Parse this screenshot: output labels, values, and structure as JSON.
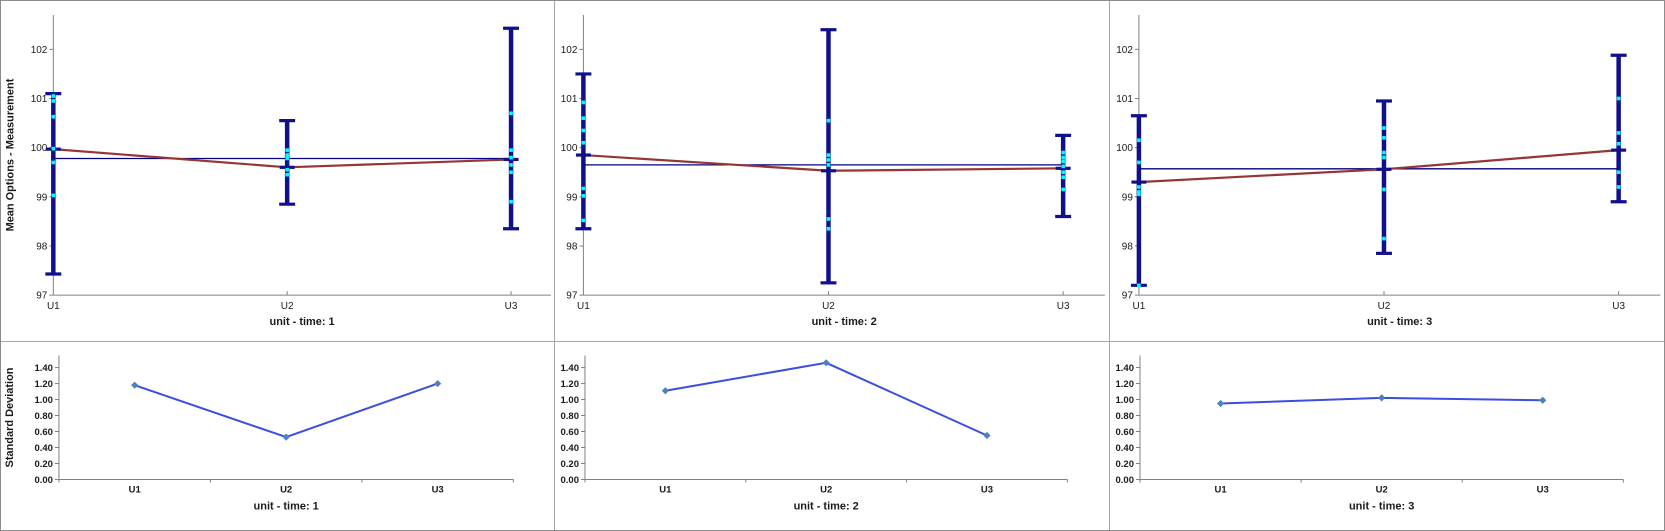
{
  "figure": {
    "description": "Two-row chart panel: mean measurements with error bars (top) and standard deviations (bottom) for units U1-U3 at times 1-3"
  },
  "colors": {
    "background": "#ffffff",
    "panel_border": "#a6a6a6",
    "axis": "#808080",
    "tick_text": "#1a1a1a",
    "error_bar": "#10108c",
    "measurement_point": "#00ffff",
    "mean_line": "#943634",
    "grand_mean_line": "#000080",
    "sd_line": "#3b4ede",
    "sd_marker": "#4f81bd"
  },
  "chart_data": [
    {
      "id": "mean-time-1",
      "type": "line",
      "row": "mean",
      "title": "unit - time: 1",
      "ylabel": "Mean Options - Measurement",
      "categories": [
        "U1",
        "U2",
        "U3"
      ],
      "ylim": [
        97,
        102.7
      ],
      "yticks": [
        97,
        98,
        99,
        100,
        101,
        102
      ],
      "grand_mean": 99.78,
      "means": [
        99.97,
        99.6,
        99.76
      ],
      "error_low": [
        97.43,
        98.85,
        98.35
      ],
      "error_high": [
        101.1,
        100.55,
        102.43
      ],
      "points": [
        [
          101.05,
          100.95,
          100.63,
          99.98,
          99.7,
          99.03
        ],
        [
          99.95,
          99.85,
          99.78,
          99.55,
          99.45
        ],
        [
          100.7,
          99.95,
          99.8,
          99.65,
          99.5,
          98.9
        ]
      ]
    },
    {
      "id": "mean-time-2",
      "type": "line",
      "row": "mean",
      "title": "unit - time: 2",
      "ylabel": "",
      "categories": [
        "U1",
        "U2",
        "U3"
      ],
      "ylim": [
        97,
        102.7
      ],
      "yticks": [
        97,
        98,
        99,
        100,
        101,
        102
      ],
      "grand_mean": 99.65,
      "means": [
        99.85,
        99.53,
        99.58
      ],
      "error_low": [
        98.35,
        97.25,
        98.6
      ],
      "error_high": [
        101.5,
        102.4,
        100.25
      ],
      "points": [
        [
          100.92,
          100.6,
          100.35,
          100.1,
          99.17,
          99.02,
          98.52
        ],
        [
          100.55,
          99.85,
          99.75,
          99.65,
          98.55,
          98.35
        ],
        [
          99.9,
          99.8,
          99.72,
          99.62,
          99.5,
          99.4,
          99.15
        ]
      ]
    },
    {
      "id": "mean-time-3",
      "type": "line",
      "row": "mean",
      "title": "unit - time: 3",
      "ylabel": "",
      "categories": [
        "U1",
        "U2",
        "U3"
      ],
      "ylim": [
        97,
        102.7
      ],
      "yticks": [
        97,
        98,
        99,
        100,
        101,
        102
      ],
      "grand_mean": 99.57,
      "means": [
        99.3,
        99.56,
        99.95
      ],
      "error_low": [
        97.2,
        97.85,
        98.9
      ],
      "error_high": [
        100.65,
        100.95,
        101.88
      ],
      "points": [
        [
          100.15,
          99.7,
          99.2,
          99.1,
          99.05,
          97.2
        ],
        [
          100.4,
          100.2,
          99.9,
          99.8,
          99.15,
          98.15
        ],
        [
          101.0,
          100.3,
          100.08,
          99.5,
          99.2
        ]
      ]
    },
    {
      "id": "sd-time-1",
      "type": "line",
      "row": "sd",
      "title": "unit - time: 1",
      "ylabel": "Standard Deviation",
      "categories": [
        "U1",
        "U2",
        "U3"
      ],
      "ylim": [
        0,
        1.55
      ],
      "yticks": [
        0.0,
        0.2,
        0.4,
        0.6,
        0.8,
        1.0,
        1.2,
        1.4
      ],
      "yticklabels": [
        "0.00",
        "0.20",
        "0.40",
        "0.60",
        "0.80",
        "1.00",
        "1.20",
        "1.40"
      ],
      "values": [
        1.18,
        0.53,
        1.2
      ]
    },
    {
      "id": "sd-time-2",
      "type": "line",
      "row": "sd",
      "title": "unit - time: 2",
      "ylabel": "",
      "categories": [
        "U1",
        "U2",
        "U3"
      ],
      "ylim": [
        0,
        1.55
      ],
      "yticks": [
        0.0,
        0.2,
        0.4,
        0.6,
        0.8,
        1.0,
        1.2,
        1.4
      ],
      "yticklabels": [
        "0.00",
        "0.20",
        "0.40",
        "0.60",
        "0.80",
        "1.00",
        "1.20",
        "1.40"
      ],
      "values": [
        1.11,
        1.46,
        0.55
      ]
    },
    {
      "id": "sd-time-3",
      "type": "line",
      "row": "sd",
      "title": "unit - time: 3",
      "ylabel": "",
      "categories": [
        "U1",
        "U2",
        "U3"
      ],
      "ylim": [
        0,
        1.55
      ],
      "yticks": [
        0.0,
        0.2,
        0.4,
        0.6,
        0.8,
        1.0,
        1.2,
        1.4
      ],
      "yticklabels": [
        "0.00",
        "0.20",
        "0.40",
        "0.60",
        "0.80",
        "1.00",
        "1.20",
        "1.40"
      ],
      "values": [
        0.95,
        1.02,
        0.99
      ]
    }
  ]
}
